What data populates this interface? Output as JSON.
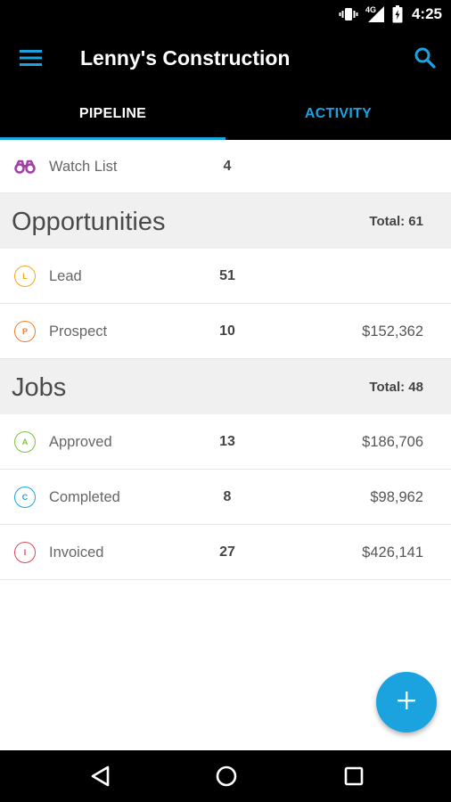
{
  "status_bar": {
    "network": "4G",
    "time": "4:25",
    "icons": [
      "vibrate-icon",
      "signal-icon",
      "battery-icon"
    ]
  },
  "app_bar": {
    "title": "Lenny's Construction",
    "icons": [
      "menu-icon",
      "search-icon"
    ]
  },
  "tabs": [
    {
      "label": "PIPELINE",
      "selected": true
    },
    {
      "label": "ACTIVITY",
      "selected": false
    }
  ],
  "watch_list": {
    "label": "Watch List",
    "count": "4",
    "icon": "binoculars-icon"
  },
  "opportunities": {
    "title": "Opportunities",
    "total": "Total: 61",
    "items": [
      {
        "letter": "L",
        "label": "Lead",
        "count": "51",
        "amount": "",
        "color": "#f5a623"
      },
      {
        "letter": "P",
        "label": "Prospect",
        "count": "10",
        "amount": "$152,362",
        "color": "#f07d2a"
      }
    ]
  },
  "jobs": {
    "title": "Jobs",
    "total": "Total: 48",
    "items": [
      {
        "letter": "A",
        "label": "Approved",
        "count": "13",
        "amount": "$186,706",
        "color": "#7cc242"
      },
      {
        "letter": "C",
        "label": "Completed",
        "count": "8",
        "amount": "$98,962",
        "color": "#1ba3e0"
      },
      {
        "letter": "I",
        "label": "Invoiced",
        "count": "27",
        "amount": "$426,141",
        "color": "#e0455a"
      }
    ]
  },
  "fab": {
    "icon": "plus-icon"
  },
  "nav_bar": {
    "icons": [
      "back-icon",
      "home-icon",
      "recent-apps-icon"
    ]
  },
  "colors": {
    "accent": "#1ba3e0",
    "bar_background": "#000000",
    "section_background": "#f0f0f0",
    "watch_icon": "#a23fa8"
  }
}
